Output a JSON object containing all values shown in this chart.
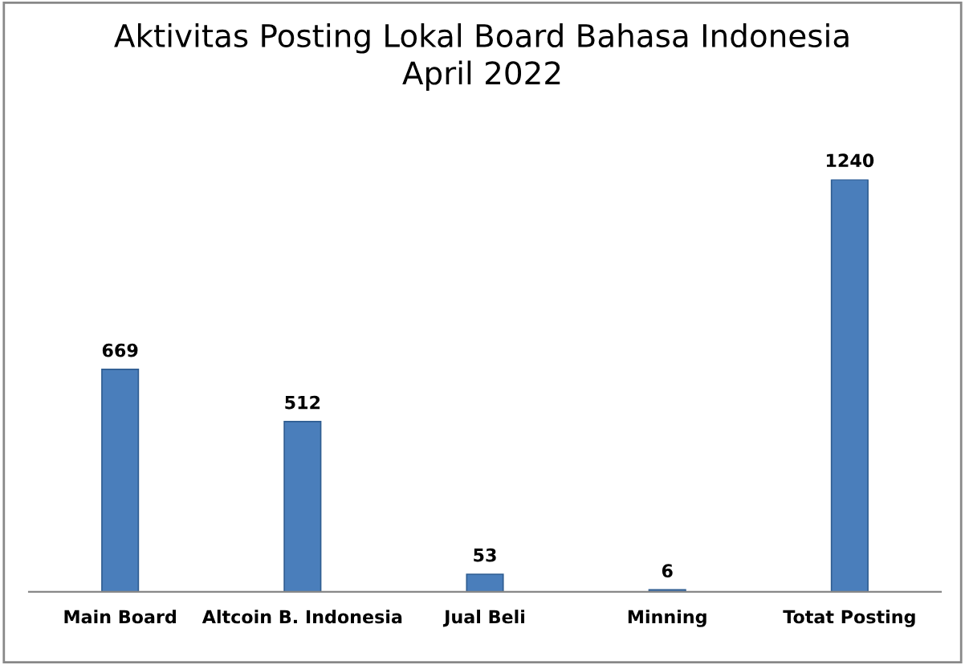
{
  "chart_data": {
    "type": "bar",
    "title": "Aktivitas Posting Lokal Board Bahasa Indonesia\nApril 2022",
    "categories": [
      "Main Board",
      "Altcoin B. Indonesia",
      "Jual Beli",
      "Minning",
      "Totat Posting"
    ],
    "values": [
      669,
      512,
      53,
      6,
      1240
    ],
    "color": "#4a7ebb",
    "data_labels": true,
    "grid": false,
    "legend": false
  }
}
